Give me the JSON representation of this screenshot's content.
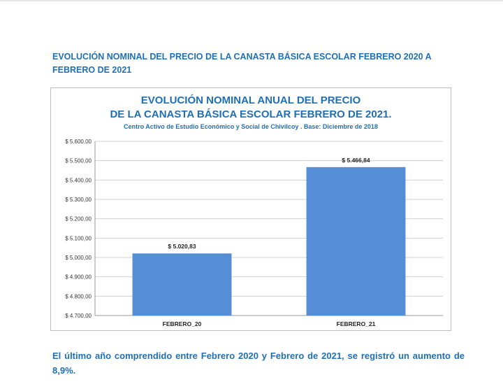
{
  "document": {
    "heading": "EVOLUCIÓN NOMINAL DEL PRECIO DE LA CANASTA BÁSICA ESCOLAR FEBRERO 2020 A FEBRERO DE 2021",
    "conclusion": "El último año comprendido entre Febrero 2020 y Febrero de 2021, se registró un aumento de 8,9%."
  },
  "chart_data": {
    "type": "bar",
    "title_line1": "EVOLUCIÓN NOMINAL ANUAL DEL PRECIO",
    "title_line2": "DE LA CANASTA BÁSICA ESCOLAR FEBRERO DE 2021.",
    "subtitle": "Centro Activo de Estudio Económico y Social de Chivilcoy . Base: Diciembre de 2018",
    "categories": [
      "FEBRERO_20",
      "FEBRERO_21"
    ],
    "values": [
      5020.83,
      5466.84
    ],
    "data_labels": [
      "$ 5.020,83",
      "$ 5.466,84"
    ],
    "ylim": [
      4700,
      5600
    ],
    "y_ticks": [
      {
        "value": 5600,
        "label": "$ 5.600,00"
      },
      {
        "value": 5500,
        "label": "$ 5.500,00"
      },
      {
        "value": 5400,
        "label": "$ 5.400,00"
      },
      {
        "value": 5300,
        "label": "$ 5.300,00"
      },
      {
        "value": 5200,
        "label": "$ 5.200,00"
      },
      {
        "value": 5100,
        "label": "$ 5.100,00"
      },
      {
        "value": 5000,
        "label": "$ 5.000,00"
      },
      {
        "value": 4900,
        "label": "$ 4.900,00"
      },
      {
        "value": 4800,
        "label": "$ 4.800,00"
      },
      {
        "value": 4700,
        "label": "$ 4.700,00"
      }
    ],
    "grid": true,
    "bar_color": "#558ed5",
    "grid_color": "#d0d0d0"
  }
}
